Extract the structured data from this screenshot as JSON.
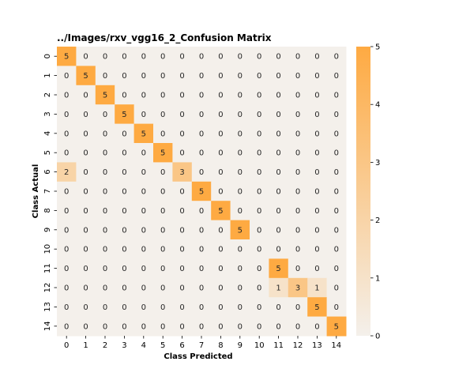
{
  "chart_data": {
    "type": "heatmap",
    "title": "../Images/rxv_vgg16_2_Confusion Matrix",
    "xlabel": "Class Predicted",
    "ylabel": "Class Actual",
    "x_categories": [
      "0",
      "1",
      "2",
      "3",
      "4",
      "5",
      "6",
      "7",
      "8",
      "9",
      "10",
      "11",
      "12",
      "13",
      "14"
    ],
    "y_categories": [
      "0",
      "1",
      "2",
      "3",
      "4",
      "5",
      "6",
      "7",
      "8",
      "9",
      "10",
      "11",
      "12",
      "13",
      "14"
    ],
    "values": [
      [
        5,
        0,
        0,
        0,
        0,
        0,
        0,
        0,
        0,
        0,
        0,
        0,
        0,
        0,
        0
      ],
      [
        0,
        5,
        0,
        0,
        0,
        0,
        0,
        0,
        0,
        0,
        0,
        0,
        0,
        0,
        0
      ],
      [
        0,
        0,
        5,
        0,
        0,
        0,
        0,
        0,
        0,
        0,
        0,
        0,
        0,
        0,
        0
      ],
      [
        0,
        0,
        0,
        5,
        0,
        0,
        0,
        0,
        0,
        0,
        0,
        0,
        0,
        0,
        0
      ],
      [
        0,
        0,
        0,
        0,
        5,
        0,
        0,
        0,
        0,
        0,
        0,
        0,
        0,
        0,
        0
      ],
      [
        0,
        0,
        0,
        0,
        0,
        5,
        0,
        0,
        0,
        0,
        0,
        0,
        0,
        0,
        0
      ],
      [
        2,
        0,
        0,
        0,
        0,
        0,
        3,
        0,
        0,
        0,
        0,
        0,
        0,
        0,
        0
      ],
      [
        0,
        0,
        0,
        0,
        0,
        0,
        0,
        5,
        0,
        0,
        0,
        0,
        0,
        0,
        0
      ],
      [
        0,
        0,
        0,
        0,
        0,
        0,
        0,
        0,
        5,
        0,
        0,
        0,
        0,
        0,
        0
      ],
      [
        0,
        0,
        0,
        0,
        0,
        0,
        0,
        0,
        0,
        5,
        0,
        0,
        0,
        0,
        0
      ],
      [
        0,
        0,
        0,
        0,
        0,
        0,
        0,
        0,
        0,
        0,
        0,
        0,
        0,
        0,
        0
      ],
      [
        0,
        0,
        0,
        0,
        0,
        0,
        0,
        0,
        0,
        0,
        0,
        5,
        0,
        0,
        0
      ],
      [
        0,
        0,
        0,
        0,
        0,
        0,
        0,
        0,
        0,
        0,
        0,
        1,
        3,
        1,
        0
      ],
      [
        0,
        0,
        0,
        0,
        0,
        0,
        0,
        0,
        0,
        0,
        0,
        0,
        0,
        5,
        0
      ],
      [
        0,
        0,
        0,
        0,
        0,
        0,
        0,
        0,
        0,
        0,
        0,
        0,
        0,
        0,
        5
      ]
    ],
    "colorbar": {
      "min": 0,
      "max": 5,
      "ticks": [
        "0",
        "1",
        "2",
        "3",
        "4",
        "5"
      ]
    },
    "colors": {
      "low": "#f4f0eb",
      "high": "#feaa42"
    }
  }
}
